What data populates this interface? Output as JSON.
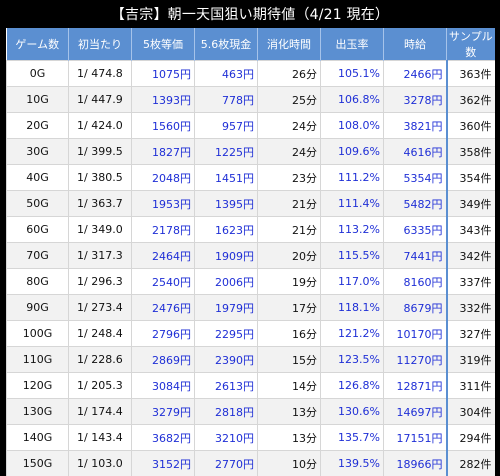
{
  "title": "【吉宗】朝一天国狙い期待値（4/21 現在）",
  "headers": [
    "ゲーム数",
    "初当たり",
    "5枚等価",
    "5.6枚現金",
    "消化時間",
    "出玉率",
    "時給",
    "サンプル数"
  ],
  "rows": [
    [
      "0G",
      "1/ 474.8",
      "1075円",
      "463円",
      "26分",
      "105.1%",
      "2466円",
      "363件"
    ],
    [
      "10G",
      "1/ 447.9",
      "1393円",
      "778円",
      "25分",
      "106.8%",
      "3278円",
      "362件"
    ],
    [
      "20G",
      "1/ 424.0",
      "1560円",
      "957円",
      "24分",
      "108.0%",
      "3821円",
      "360件"
    ],
    [
      "30G",
      "1/ 399.5",
      "1827円",
      "1225円",
      "24分",
      "109.6%",
      "4616円",
      "358件"
    ],
    [
      "40G",
      "1/ 380.5",
      "2048円",
      "1451円",
      "23分",
      "111.2%",
      "5354円",
      "354件"
    ],
    [
      "50G",
      "1/ 363.7",
      "1953円",
      "1395円",
      "21分",
      "111.4%",
      "5482円",
      "349件"
    ],
    [
      "60G",
      "1/ 349.0",
      "2178円",
      "1623円",
      "21分",
      "113.2%",
      "6335円",
      "343件"
    ],
    [
      "70G",
      "1/ 317.3",
      "2464円",
      "1909円",
      "20分",
      "115.5%",
      "7441円",
      "342件"
    ],
    [
      "80G",
      "1/ 296.3",
      "2540円",
      "2006円",
      "19分",
      "117.0%",
      "8160円",
      "337件"
    ],
    [
      "90G",
      "1/ 273.4",
      "2476円",
      "1979円",
      "17分",
      "118.1%",
      "8679円",
      "332件"
    ],
    [
      "100G",
      "1/ 248.4",
      "2796円",
      "2295円",
      "16分",
      "121.2%",
      "10170円",
      "327件"
    ],
    [
      "110G",
      "1/ 228.6",
      "2869円",
      "2390円",
      "15分",
      "123.5%",
      "11270円",
      "319件"
    ],
    [
      "120G",
      "1/ 205.3",
      "3084円",
      "2613円",
      "14分",
      "126.8%",
      "12871円",
      "311件"
    ],
    [
      "130G",
      "1/ 174.4",
      "3279円",
      "2818円",
      "13分",
      "130.6%",
      "14697円",
      "304件"
    ],
    [
      "140G",
      "1/ 143.4",
      "3682円",
      "3210円",
      "13分",
      "135.7%",
      "17151円",
      "294件"
    ],
    [
      "150G",
      "1/ 103.0",
      "3152円",
      "2770円",
      "10分",
      "139.5%",
      "18966円",
      "282件"
    ]
  ],
  "colors": {
    "header_bg": "#5b8fd1",
    "yen_text": "#1f2fd6",
    "title_bg": "#000000"
  }
}
